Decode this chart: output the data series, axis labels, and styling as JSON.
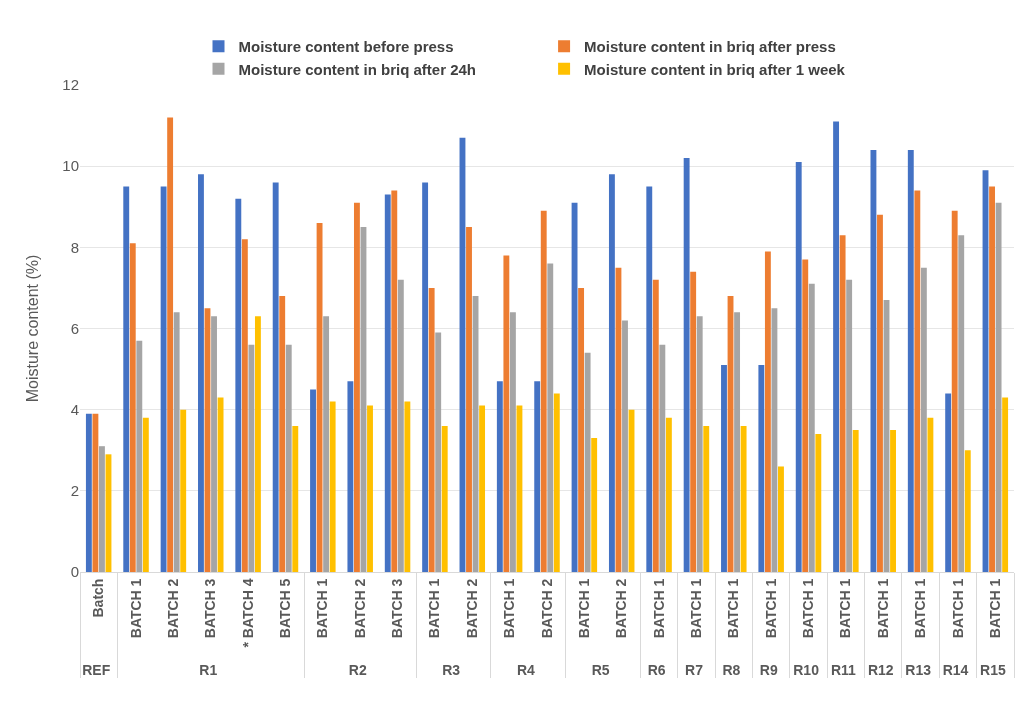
{
  "chart_data": {
    "type": "bar",
    "ylabel": "Moisture content (%)",
    "categories": [
      [
        "REF",
        "Batch"
      ],
      [
        "R1",
        "BATCH 1"
      ],
      [
        null,
        "BATCH 2"
      ],
      [
        null,
        "BATCH 3"
      ],
      [
        null,
        "* BATCH 4"
      ],
      [
        null,
        "BATCH 5"
      ],
      [
        "R2",
        "BATCH 1"
      ],
      [
        null,
        "BATCH 2"
      ],
      [
        null,
        "BATCH 3"
      ],
      [
        "R3",
        "BATCH 1"
      ],
      [
        null,
        "BATCH 2"
      ],
      [
        "R4",
        "BATCH 1"
      ],
      [
        null,
        "BATCH 2"
      ],
      [
        "R5",
        "BATCH 1"
      ],
      [
        null,
        "BATCH 2"
      ],
      [
        "R6",
        "BATCH 1"
      ],
      [
        "R7",
        "BATCH 1"
      ],
      [
        "R8",
        "BATCH 1"
      ],
      [
        "R9",
        "BATCH 1"
      ],
      [
        "R10",
        "BATCH 1"
      ],
      [
        "R11",
        "BATCH 1"
      ],
      [
        "R12",
        "BATCH 1"
      ],
      [
        "R13",
        "BATCH 1"
      ],
      [
        "R14",
        "BATCH 1"
      ],
      [
        "R15",
        "BATCH 1"
      ]
    ],
    "series": [
      {
        "name": "Moisture content before press",
        "color": "#4472c4",
        "values": [
          3.9,
          9.5,
          9.5,
          9.8,
          9.2,
          9.6,
          4.5,
          4.7,
          9.3,
          9.6,
          10.7,
          4.7,
          4.7,
          9.1,
          9.8,
          9.5,
          10.2,
          5.1,
          5.1,
          10.1,
          11.1,
          10.4,
          10.4,
          4.4,
          9.9
        ]
      },
      {
        "name": "Moisture content in briq after press",
        "color": "#ed7d31",
        "values": [
          3.9,
          8.1,
          11.2,
          6.5,
          8.2,
          6.8,
          8.6,
          9.1,
          9.4,
          7.0,
          8.5,
          7.8,
          8.9,
          7.0,
          7.5,
          7.2,
          7.4,
          6.8,
          7.9,
          7.7,
          8.3,
          8.8,
          9.4,
          8.9,
          9.5
        ]
      },
      {
        "name": "Moisture content in briq after 24h",
        "color": "#a5a5a5",
        "values": [
          3.1,
          5.7,
          6.4,
          6.3,
          5.6,
          5.6,
          6.3,
          8.5,
          7.2,
          5.9,
          6.8,
          6.4,
          7.6,
          5.4,
          6.2,
          5.6,
          6.3,
          6.4,
          6.5,
          7.1,
          7.2,
          6.7,
          7.5,
          8.3,
          9.1
        ]
      },
      {
        "name": "Moisture content in briq after 1 week",
        "color": "#ffc000",
        "values": [
          2.9,
          3.8,
          4.0,
          4.3,
          6.3,
          3.6,
          4.2,
          4.1,
          4.2,
          3.6,
          4.1,
          4.1,
          4.4,
          3.3,
          4.0,
          3.8,
          3.6,
          3.6,
          2.6,
          3.4,
          3.5,
          3.5,
          3.8,
          3.0,
          4.3
        ]
      }
    ],
    "ylim": [
      0,
      12
    ],
    "yticks": [
      0,
      2,
      4,
      6,
      8,
      10,
      12
    ],
    "grid": "y",
    "legend": "top"
  }
}
